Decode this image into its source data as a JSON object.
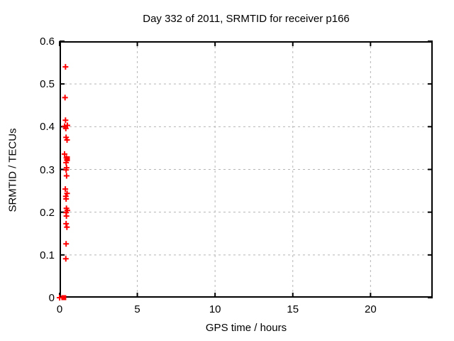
{
  "chart_data": {
    "type": "scatter",
    "title": "Day 332 of 2011, SRMTID for receiver p166",
    "xlabel": "GPS time / hours",
    "ylabel": "SRMTID / TECUs",
    "xlim": [
      0,
      24
    ],
    "ylim": [
      0,
      0.6
    ],
    "xticks": {
      "values": [
        0,
        5,
        10,
        15,
        20
      ],
      "labels": [
        "0",
        "5",
        "10",
        "15",
        "20"
      ]
    },
    "yticks": {
      "values": [
        0,
        0.1,
        0.2,
        0.3,
        0.4,
        0.5,
        0.6
      ],
      "labels": [
        "0",
        "0.1",
        "0.2",
        "0.3",
        "0.4",
        "0.5",
        "0.6"
      ]
    },
    "grid": true,
    "legend": false,
    "colors": {
      "marker": "#ff0000",
      "grid": "#b5b5b5",
      "frame": "#000000",
      "background": "#ffffff"
    },
    "series": [
      {
        "name": "plus-markers",
        "marker": "plus",
        "points": [
          [
            0.38,
            0.54
          ],
          [
            0.35,
            0.468
          ],
          [
            0.38,
            0.415
          ],
          [
            0.32,
            0.401
          ],
          [
            0.5,
            0.403
          ],
          [
            0.4,
            0.396
          ],
          [
            0.42,
            0.375
          ],
          [
            0.48,
            0.369
          ],
          [
            0.32,
            0.336
          ],
          [
            0.44,
            0.327
          ],
          [
            0.47,
            0.322
          ],
          [
            0.42,
            0.316
          ],
          [
            0.45,
            0.304
          ],
          [
            0.42,
            0.299
          ],
          [
            0.45,
            0.285
          ],
          [
            0.37,
            0.254
          ],
          [
            0.48,
            0.244
          ],
          [
            0.4,
            0.237
          ],
          [
            0.42,
            0.231
          ],
          [
            0.44,
            0.209
          ],
          [
            0.5,
            0.204
          ],
          [
            0.42,
            0.199
          ],
          [
            0.44,
            0.191
          ],
          [
            0.42,
            0.173
          ],
          [
            0.47,
            0.165
          ],
          [
            0.42,
            0.126
          ],
          [
            0.4,
            0.091
          ],
          [
            0.0,
            0.0
          ]
        ]
      },
      {
        "name": "square-markers",
        "marker": "filled-square",
        "points": [
          [
            0.5,
            0.325
          ],
          [
            0.27,
            0.0
          ]
        ]
      }
    ]
  }
}
